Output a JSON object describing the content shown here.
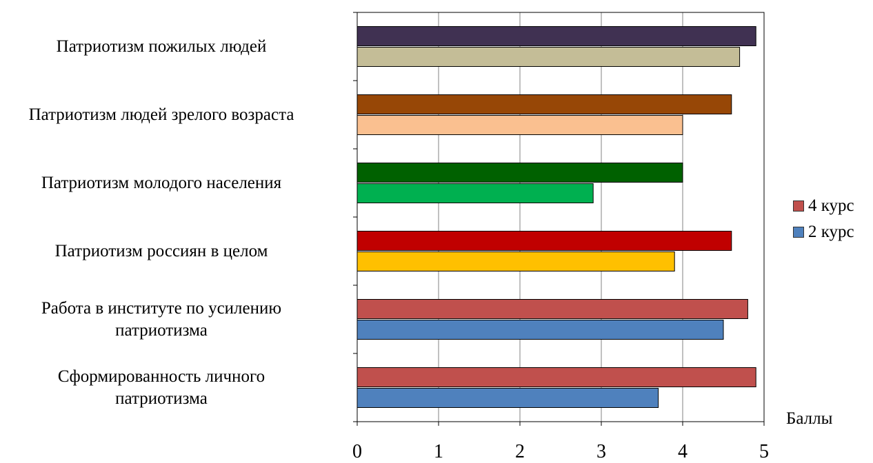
{
  "chart_data": {
    "type": "bar",
    "orientation": "horizontal",
    "categories": [
      "Сформированность личного\nпатриотизма",
      "Работа в институте по усилению\nпатриотизма",
      "Патриотизм россиян в целом",
      "Патриотизм молодого населения",
      "Патриотизм людей зрелого возраста",
      "Патриотизм пожилых людей"
    ],
    "series": [
      {
        "name": "2 курс",
        "values": [
          3.7,
          4.5,
          3.9,
          2.9,
          4.0,
          4.7
        ]
      },
      {
        "name": "4 курс",
        "values": [
          4.9,
          4.8,
          4.6,
          4.0,
          4.6,
          4.9
        ]
      }
    ],
    "bar_colors": {
      "2 курс": [
        "#4f81bd",
        "#4f81bd",
        "#ffc000",
        "#00b050",
        "#fac090",
        "#c4bd97"
      ],
      "4 курс": [
        "#c0504d",
        "#c0504d",
        "#c00000",
        "#006100",
        "#974706",
        "#403152"
      ]
    },
    "legend_colors": {
      "4 курс": "#c0504d",
      "2 курс": "#4f81bd"
    },
    "xlabel": "Баллы",
    "ylabel": "",
    "xlim": [
      0,
      5
    ],
    "xticks": [
      "0",
      "1",
      "2",
      "3",
      "4",
      "5"
    ],
    "grid": "vertical",
    "legend_position": "right",
    "legend_order": [
      "4 курс",
      "2 курс"
    ]
  }
}
